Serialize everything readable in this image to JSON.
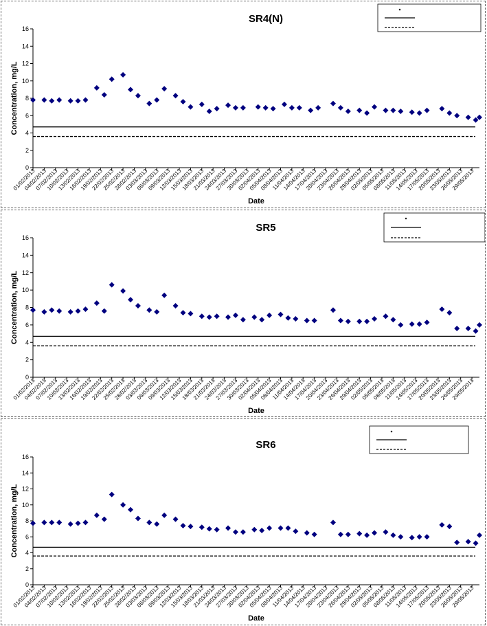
{
  "colors": {
    "marker": "#00007f",
    "line": "#000000"
  },
  "chart_data": [
    {
      "type": "scatter",
      "title": "SR4(N)",
      "xlabel": "Date",
      "ylabel": "Concentration, mg/L",
      "ylim": [
        0,
        16
      ],
      "yticks": [
        0,
        2,
        4,
        6,
        8,
        10,
        12,
        14,
        16
      ],
      "xlim": [
        "01/02/2013",
        "31/05/2013"
      ],
      "xtick_labels": [
        "01/02/2013",
        "04/02/2013",
        "07/02/2013",
        "10/02/2013",
        "13/02/2013",
        "16/02/2013",
        "19/02/2013",
        "22/02/2013",
        "25/02/2013",
        "28/02/2013",
        "03/03/2013",
        "06/03/2013",
        "09/03/2013",
        "12/03/2013",
        "15/03/2013",
        "18/03/2013",
        "21/03/2013",
        "24/03/2013",
        "27/03/2013",
        "30/03/2013",
        "02/04/2013",
        "05/04/2013",
        "08/04/2013",
        "11/04/2013",
        "14/04/2013",
        "17/04/2013",
        "20/04/2013",
        "23/04/2013",
        "26/04/2013",
        "29/04/2013",
        "02/05/2013",
        "05/05/2013",
        "08/05/2013",
        "11/05/2013",
        "14/05/2013",
        "17/05/2013",
        "20/05/2013",
        "23/05/2013",
        "26/05/2013",
        "29/05/2013"
      ],
      "grid": false,
      "legend_position": "top-right",
      "series": [
        {
          "type": "scatter",
          "x": [
            "01/02/2013",
            "04/02/2013",
            "06/02/2013",
            "08/02/2013",
            "11/02/2013",
            "13/02/2013",
            "15/02/2013",
            "18/02/2013",
            "20/02/2013",
            "22/02/2013",
            "25/02/2013",
            "27/02/2013",
            "01/03/2013",
            "04/03/2013",
            "06/03/2013",
            "08/03/2013",
            "11/03/2013",
            "13/03/2013",
            "15/03/2013",
            "18/03/2013",
            "20/03/2013",
            "22/03/2013",
            "25/03/2013",
            "27/03/2013",
            "29/03/2013",
            "02/04/2013",
            "04/04/2013",
            "06/04/2013",
            "09/04/2013",
            "11/04/2013",
            "13/04/2013",
            "16/04/2013",
            "18/04/2013",
            "22/04/2013",
            "24/04/2013",
            "26/04/2013",
            "29/04/2013",
            "01/05/2013",
            "03/05/2013",
            "06/05/2013",
            "08/05/2013",
            "10/05/2013",
            "13/05/2013",
            "15/05/2013",
            "17/05/2013",
            "21/05/2013",
            "23/05/2013",
            "25/05/2013",
            "28/05/2013",
            "30/05/2013",
            "31/05/2013"
          ],
          "y": [
            7.8,
            7.8,
            7.7,
            7.8,
            7.7,
            7.7,
            7.8,
            9.2,
            8.4,
            10.2,
            10.7,
            9.0,
            8.3,
            7.4,
            7.8,
            9.1,
            8.3,
            7.6,
            7.0,
            7.3,
            6.5,
            6.8,
            7.2,
            6.9,
            6.9,
            7.0,
            6.9,
            6.8,
            7.3,
            6.9,
            6.9,
            6.6,
            6.9,
            7.4,
            6.9,
            6.5,
            6.6,
            6.3,
            7.0,
            6.6,
            6.6,
            6.5,
            6.4,
            6.3,
            6.6,
            6.8,
            6.3,
            6.0,
            5.8,
            5.5,
            5.8
          ]
        },
        {
          "type": "line",
          "style": "solid",
          "y": 4.7
        },
        {
          "type": "line",
          "style": "dashed",
          "y": 3.6
        }
      ]
    },
    {
      "type": "scatter",
      "title": "SR5",
      "xlabel": "Date",
      "ylabel": "Concentration, mg/L",
      "ylim": [
        0,
        16
      ],
      "yticks": [
        0,
        2,
        4,
        6,
        8,
        10,
        12,
        14,
        16
      ],
      "xlim": [
        "01/02/2013",
        "31/05/2013"
      ],
      "xtick_labels": [
        "01/02/2013",
        "04/02/2013",
        "07/02/2013",
        "10/02/2013",
        "13/02/2013",
        "16/02/2013",
        "19/02/2013",
        "22/02/2013",
        "25/02/2013",
        "28/02/2013",
        "03/03/2013",
        "06/03/2013",
        "09/03/2013",
        "12/03/2013",
        "15/03/2013",
        "18/03/2013",
        "21/03/2013",
        "24/03/2013",
        "27/03/2013",
        "30/03/2013",
        "02/04/2013",
        "05/04/2013",
        "08/04/2013",
        "11/04/2013",
        "14/04/2013",
        "17/04/2013",
        "20/04/2013",
        "23/04/2013",
        "26/04/2013",
        "29/04/2013",
        "02/05/2013",
        "05/05/2013",
        "08/05/2013",
        "11/05/2013",
        "14/05/2013",
        "17/05/2013",
        "20/05/2013",
        "23/05/2013",
        "26/05/2013",
        "29/05/2013"
      ],
      "grid": false,
      "legend_position": "top-right",
      "series": [
        {
          "type": "scatter",
          "x": [
            "01/02/2013",
            "04/02/2013",
            "06/02/2013",
            "08/02/2013",
            "11/02/2013",
            "13/02/2013",
            "15/02/2013",
            "18/02/2013",
            "20/02/2013",
            "22/02/2013",
            "25/02/2013",
            "27/02/2013",
            "01/03/2013",
            "04/03/2013",
            "06/03/2013",
            "08/03/2013",
            "11/03/2013",
            "13/03/2013",
            "15/03/2013",
            "18/03/2013",
            "20/03/2013",
            "22/03/2013",
            "25/03/2013",
            "27/03/2013",
            "29/03/2013",
            "01/04/2013",
            "03/04/2013",
            "05/04/2013",
            "08/04/2013",
            "10/04/2013",
            "12/04/2013",
            "15/04/2013",
            "17/04/2013",
            "22/04/2013",
            "24/04/2013",
            "26/04/2013",
            "29/04/2013",
            "01/05/2013",
            "03/05/2013",
            "06/05/2013",
            "08/05/2013",
            "10/05/2013",
            "13/05/2013",
            "15/05/2013",
            "17/05/2013",
            "21/05/2013",
            "23/05/2013",
            "25/05/2013",
            "28/05/2013",
            "30/05/2013",
            "31/05/2013"
          ],
          "y": [
            7.7,
            7.5,
            7.7,
            7.6,
            7.5,
            7.6,
            7.8,
            8.5,
            7.6,
            10.6,
            9.9,
            8.9,
            8.2,
            7.7,
            7.5,
            9.4,
            8.2,
            7.4,
            7.3,
            7.0,
            6.9,
            7.0,
            6.9,
            7.1,
            6.6,
            6.9,
            6.6,
            7.1,
            7.2,
            6.8,
            6.7,
            6.5,
            6.5,
            7.7,
            6.5,
            6.4,
            6.4,
            6.4,
            6.7,
            7.0,
            6.6,
            6.0,
            6.1,
            6.1,
            6.3,
            7.8,
            7.4,
            5.6,
            5.6,
            5.3,
            6.0
          ]
        },
        {
          "type": "line",
          "style": "solid",
          "y": 4.7
        },
        {
          "type": "line",
          "style": "dashed",
          "y": 3.6
        }
      ]
    },
    {
      "type": "scatter",
      "title": "SR6",
      "xlabel": "Date",
      "ylabel": "Concentration, mg/L",
      "ylim": [
        0,
        16
      ],
      "yticks": [
        0,
        2,
        4,
        6,
        8,
        10,
        12,
        14,
        16
      ],
      "xlim": [
        "01/02/2013",
        "31/05/2013"
      ],
      "xtick_labels": [
        "01/02/2013",
        "04/02/2013",
        "07/02/2013",
        "10/02/2013",
        "13/02/2013",
        "16/02/2013",
        "19/02/2013",
        "22/02/2013",
        "25/02/2013",
        "28/02/2013",
        "03/03/2013",
        "06/03/2013",
        "09/03/2013",
        "12/03/2013",
        "15/03/2013",
        "18/03/2013",
        "21/03/2013",
        "24/03/2013",
        "27/03/2013",
        "30/03/2013",
        "02/04/2013",
        "05/04/2013",
        "08/04/2013",
        "11/04/2013",
        "14/04/2013",
        "17/04/2013",
        "20/04/2013",
        "23/04/2013",
        "26/04/2013",
        "29/04/2013",
        "02/05/2013",
        "05/05/2013",
        "08/05/2013",
        "11/05/2013",
        "14/05/2013",
        "17/05/2013",
        "20/05/2013",
        "23/05/2013",
        "26/05/2013",
        "29/05/2013"
      ],
      "grid": false,
      "legend_position": "top-right",
      "series": [
        {
          "type": "scatter",
          "x": [
            "01/02/2013",
            "04/02/2013",
            "06/02/2013",
            "08/02/2013",
            "11/02/2013",
            "13/02/2013",
            "15/02/2013",
            "18/02/2013",
            "20/02/2013",
            "22/02/2013",
            "25/02/2013",
            "27/02/2013",
            "01/03/2013",
            "04/03/2013",
            "06/03/2013",
            "08/03/2013",
            "11/03/2013",
            "13/03/2013",
            "15/03/2013",
            "18/03/2013",
            "20/03/2013",
            "22/03/2013",
            "25/03/2013",
            "27/03/2013",
            "29/03/2013",
            "01/04/2013",
            "03/04/2013",
            "05/04/2013",
            "08/04/2013",
            "10/04/2013",
            "12/04/2013",
            "15/04/2013",
            "17/04/2013",
            "22/04/2013",
            "24/04/2013",
            "26/04/2013",
            "29/04/2013",
            "01/05/2013",
            "03/05/2013",
            "06/05/2013",
            "08/05/2013",
            "10/05/2013",
            "13/05/2013",
            "15/05/2013",
            "17/05/2013",
            "21/05/2013",
            "23/05/2013",
            "25/05/2013",
            "28/05/2013",
            "30/05/2013",
            "31/05/2013"
          ],
          "y": [
            7.7,
            7.8,
            7.8,
            7.8,
            7.6,
            7.7,
            7.8,
            8.7,
            8.2,
            11.3,
            10.0,
            9.4,
            8.3,
            7.8,
            7.6,
            8.7,
            8.2,
            7.4,
            7.3,
            7.2,
            7.0,
            6.9,
            7.1,
            6.6,
            6.6,
            6.9,
            6.8,
            7.1,
            7.1,
            7.1,
            6.7,
            6.5,
            6.3,
            7.8,
            6.3,
            6.3,
            6.4,
            6.2,
            6.5,
            6.6,
            6.2,
            6.0,
            5.9,
            6.0,
            6.0,
            7.5,
            7.3,
            5.3,
            5.4,
            5.2,
            6.2
          ]
        },
        {
          "type": "line",
          "style": "solid",
          "y": 4.7
        },
        {
          "type": "line",
          "style": "dashed",
          "y": 3.6
        }
      ]
    }
  ]
}
